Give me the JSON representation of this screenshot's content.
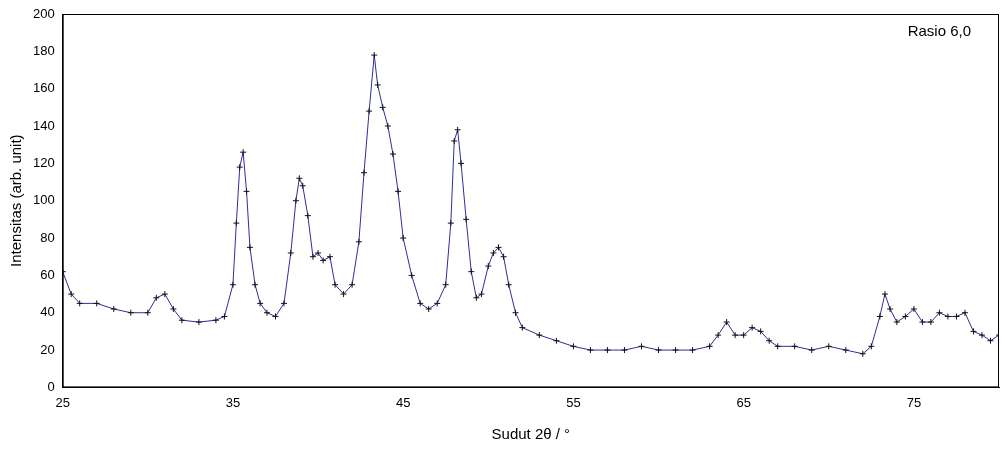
{
  "chart_data": {
    "type": "line",
    "annotation": "Rasio 6,0",
    "x_label": "Sudut 2θ / °",
    "y_label": "Intensitas (arb. unit)",
    "xlim": [
      25,
      80
    ],
    "xticks": [
      25,
      35,
      45,
      55,
      65,
      75
    ],
    "ylim": [
      0,
      200
    ],
    "yticks": [
      0,
      20,
      40,
      60,
      80,
      100,
      120,
      140,
      160,
      180,
      200
    ],
    "grid": false,
    "x": [
      25,
      25.5,
      26,
      27,
      28,
      29,
      30,
      30.5,
      31,
      31.5,
      32,
      33,
      34,
      34.5,
      35,
      35.2,
      35.4,
      35.6,
      35.8,
      36,
      36.3,
      36.6,
      37,
      37.5,
      38,
      38.4,
      38.7,
      38.9,
      39.1,
      39.4,
      39.7,
      40,
      40.3,
      40.7,
      41,
      41.5,
      42,
      42.4,
      42.7,
      43,
      43.3,
      43.5,
      43.8,
      44.1,
      44.4,
      44.7,
      45,
      45.5,
      46,
      46.5,
      47,
      47.5,
      47.8,
      48,
      48.2,
      48.4,
      48.7,
      49,
      49.3,
      49.6,
      50,
      50.3,
      50.6,
      50.9,
      51.2,
      51.6,
      52,
      53,
      54,
      55,
      56,
      57,
      58,
      59,
      60,
      61,
      62,
      63,
      63.5,
      64,
      64.5,
      65,
      65.5,
      66,
      66.5,
      67,
      68,
      69,
      70,
      71,
      72,
      72.5,
      73,
      73.3,
      73.6,
      74,
      74.5,
      75,
      75.5,
      76,
      76.5,
      77,
      77.5,
      78,
      78.5,
      79,
      79.5,
      80
    ],
    "series": [
      {
        "color": "#2e2e9a",
        "marker": "cross",
        "values": [
          62,
          50,
          45,
          45,
          42,
          40,
          40,
          48,
          50,
          42,
          36,
          35,
          36,
          38,
          55,
          88,
          118,
          126,
          105,
          75,
          55,
          45,
          40,
          38,
          45,
          72,
          100,
          112,
          108,
          92,
          70,
          72,
          68,
          70,
          55,
          50,
          55,
          78,
          115,
          148,
          178,
          162,
          150,
          140,
          125,
          105,
          80,
          60,
          45,
          42,
          45,
          55,
          88,
          132,
          138,
          120,
          90,
          62,
          48,
          50,
          65,
          72,
          75,
          70,
          55,
          40,
          32,
          28,
          25,
          22,
          20,
          20,
          20,
          22,
          20,
          20,
          20,
          22,
          28,
          35,
          28,
          28,
          32,
          30,
          25,
          22,
          22,
          20,
          22,
          20,
          18,
          22,
          38,
          50,
          42,
          35,
          38,
          42,
          35,
          35,
          40,
          38,
          38,
          40,
          30,
          28,
          25,
          28
        ]
      }
    ]
  }
}
